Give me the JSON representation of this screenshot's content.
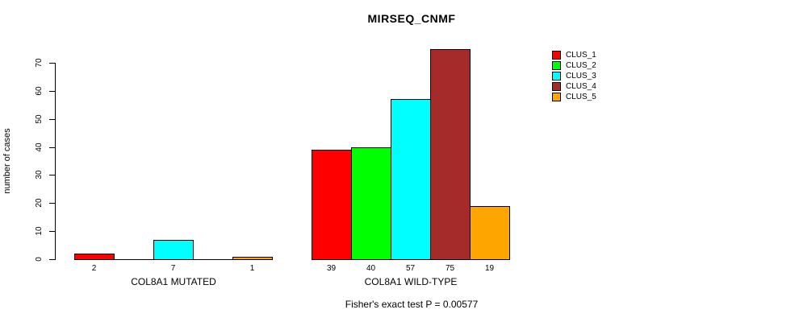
{
  "title": "MIRSEQ_CNMF",
  "footer": "Fisher's exact test P = 0.00577",
  "y_axis": {
    "label": "number of cases",
    "ticks": [
      0,
      10,
      20,
      30,
      40,
      50,
      60,
      70
    ]
  },
  "legend": {
    "entries": [
      {
        "label": "CLUS_1",
        "color": "#FF0000"
      },
      {
        "label": "CLUS_2",
        "color": "#00FF00"
      },
      {
        "label": "CLUS_3",
        "color": "#00FFFF"
      },
      {
        "label": "CLUS_4",
        "color": "#A52A2A"
      },
      {
        "label": "CLUS_5",
        "color": "#FFA500"
      }
    ]
  },
  "chart_data": {
    "type": "bar",
    "title": "MIRSEQ_CNMF",
    "ylabel": "number of cases",
    "ylim": [
      0,
      70
    ],
    "yticks": [
      0,
      10,
      20,
      30,
      40,
      50,
      60,
      70
    ],
    "grid": false,
    "legend_position": "right",
    "series_names": [
      "CLUS_1",
      "CLUS_2",
      "CLUS_3",
      "CLUS_4",
      "CLUS_5"
    ],
    "series_colors": [
      "#FF0000",
      "#00FF00",
      "#00FFFF",
      "#A52A2A",
      "#FFA500"
    ],
    "groups": [
      {
        "label": "COL8A1 MUTATED",
        "values": [
          2,
          0,
          7,
          0,
          1
        ]
      },
      {
        "label": "COL8A1 WILD-TYPE",
        "values": [
          39,
          40,
          57,
          75,
          19
        ]
      }
    ],
    "annotation": "Fisher's exact test P = 0.00577"
  }
}
